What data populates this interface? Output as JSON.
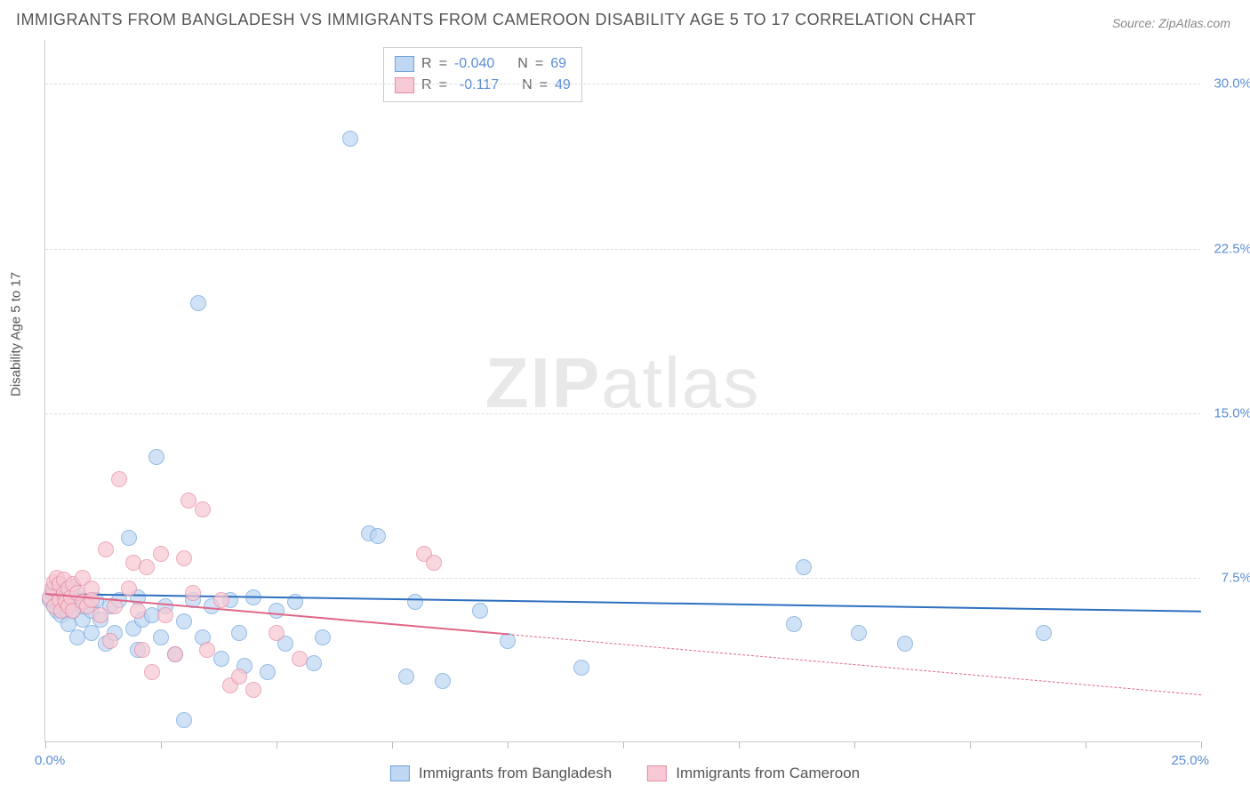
{
  "title": "IMMIGRANTS FROM BANGLADESH VS IMMIGRANTS FROM CAMEROON DISABILITY AGE 5 TO 17 CORRELATION CHART",
  "source": "Source: ZipAtlas.com",
  "ylabel": "Disability Age 5 to 17",
  "watermark_strong": "ZIP",
  "watermark_rest": "atlas",
  "chart": {
    "type": "scatter",
    "xlim": [
      0,
      25
    ],
    "ylim": [
      0,
      32
    ],
    "x_ticks": [
      0,
      2.5,
      5,
      7.5,
      10,
      12.5,
      15,
      17.5,
      20,
      22.5,
      25
    ],
    "x_origin_label": "0.0%",
    "x_max_label": "25.0%",
    "y_grid": [
      {
        "v": 7.5,
        "label": "7.5%"
      },
      {
        "v": 15.0,
        "label": "15.0%"
      },
      {
        "v": 22.5,
        "label": "22.5%"
      },
      {
        "v": 30.0,
        "label": "30.0%"
      }
    ],
    "background_color": "#ffffff",
    "grid_color": "#dddddd",
    "marker_radius": 9,
    "marker_opacity": 0.72,
    "title_fontsize": 18,
    "label_fontsize": 15,
    "series": [
      {
        "name": "Immigrants from Bangladesh",
        "legend_label": "Immigrants from Bangladesh",
        "fill": "#bfd7f2",
        "stroke": "#6fa3db",
        "trend_color": "#2e6fc0",
        "trend_width": 2.5,
        "R": "-0.040",
        "N": "69",
        "trend": {
          "x1": 0,
          "y1": 6.8,
          "x2": 25,
          "y2": 6.0
        },
        "points": [
          [
            0.1,
            6.5
          ],
          [
            0.15,
            6.8
          ],
          [
            0.2,
            6.2
          ],
          [
            0.2,
            7.0
          ],
          [
            0.25,
            6.0
          ],
          [
            0.3,
            6.6
          ],
          [
            0.3,
            7.2
          ],
          [
            0.35,
            5.8
          ],
          [
            0.4,
            6.5
          ],
          [
            0.4,
            7.0
          ],
          [
            0.45,
            6.0
          ],
          [
            0.5,
            6.8
          ],
          [
            0.5,
            5.4
          ],
          [
            0.55,
            6.4
          ],
          [
            0.6,
            6.0
          ],
          [
            0.6,
            7.1
          ],
          [
            0.7,
            4.8
          ],
          [
            0.7,
            6.6
          ],
          [
            0.8,
            5.6
          ],
          [
            0.8,
            6.2
          ],
          [
            1.0,
            5.0
          ],
          [
            1.0,
            6.0
          ],
          [
            1.1,
            6.5
          ],
          [
            1.2,
            5.6
          ],
          [
            1.3,
            4.5
          ],
          [
            1.4,
            6.2
          ],
          [
            1.5,
            5.0
          ],
          [
            1.6,
            6.5
          ],
          [
            1.8,
            9.3
          ],
          [
            1.9,
            5.2
          ],
          [
            2.0,
            4.2
          ],
          [
            2.0,
            6.6
          ],
          [
            2.1,
            5.6
          ],
          [
            2.3,
            5.8
          ],
          [
            2.4,
            13.0
          ],
          [
            2.5,
            4.8
          ],
          [
            2.6,
            6.2
          ],
          [
            2.8,
            4.0
          ],
          [
            3.0,
            5.5
          ],
          [
            3.0,
            1.0
          ],
          [
            3.2,
            6.5
          ],
          [
            3.3,
            20.0
          ],
          [
            3.4,
            4.8
          ],
          [
            3.6,
            6.2
          ],
          [
            3.8,
            3.8
          ],
          [
            4.0,
            6.5
          ],
          [
            4.2,
            5.0
          ],
          [
            4.3,
            3.5
          ],
          [
            4.5,
            6.6
          ],
          [
            4.8,
            3.2
          ],
          [
            5.0,
            6.0
          ],
          [
            5.2,
            4.5
          ],
          [
            5.4,
            6.4
          ],
          [
            5.8,
            3.6
          ],
          [
            6.0,
            4.8
          ],
          [
            6.6,
            27.5
          ],
          [
            7.0,
            9.5
          ],
          [
            7.2,
            9.4
          ],
          [
            7.8,
            3.0
          ],
          [
            8.0,
            6.4
          ],
          [
            8.6,
            2.8
          ],
          [
            9.4,
            6.0
          ],
          [
            10.0,
            4.6
          ],
          [
            11.6,
            3.4
          ],
          [
            16.4,
            8.0
          ],
          [
            16.2,
            5.4
          ],
          [
            17.6,
            5.0
          ],
          [
            18.6,
            4.5
          ],
          [
            21.6,
            5.0
          ]
        ]
      },
      {
        "name": "Immigrants from Cameroon",
        "legend_label": "Immigrants from Cameroon",
        "fill": "#f7c9d4",
        "stroke": "#e88aa2",
        "trend_color": "#e06688",
        "trend_width": 2,
        "dash_after_x": 10,
        "R": "-0.117",
        "N": "49",
        "trend": {
          "x1": 0,
          "y1": 6.8,
          "x2": 25,
          "y2": 2.2
        },
        "points": [
          [
            0.1,
            6.6
          ],
          [
            0.15,
            7.0
          ],
          [
            0.2,
            7.3
          ],
          [
            0.2,
            6.2
          ],
          [
            0.25,
            7.5
          ],
          [
            0.3,
            6.5
          ],
          [
            0.3,
            7.2
          ],
          [
            0.35,
            6.0
          ],
          [
            0.4,
            6.8
          ],
          [
            0.4,
            7.4
          ],
          [
            0.45,
            6.4
          ],
          [
            0.5,
            7.0
          ],
          [
            0.5,
            6.2
          ],
          [
            0.55,
            6.6
          ],
          [
            0.6,
            7.2
          ],
          [
            0.6,
            6.0
          ],
          [
            0.7,
            6.8
          ],
          [
            0.8,
            6.4
          ],
          [
            0.8,
            7.5
          ],
          [
            0.9,
            6.2
          ],
          [
            1.0,
            7.0
          ],
          [
            1.0,
            6.5
          ],
          [
            1.2,
            5.8
          ],
          [
            1.3,
            8.8
          ],
          [
            1.4,
            4.6
          ],
          [
            1.5,
            6.2
          ],
          [
            1.6,
            12.0
          ],
          [
            1.8,
            7.0
          ],
          [
            1.9,
            8.2
          ],
          [
            2.0,
            6.0
          ],
          [
            2.1,
            4.2
          ],
          [
            2.2,
            8.0
          ],
          [
            2.3,
            3.2
          ],
          [
            2.5,
            8.6
          ],
          [
            2.6,
            5.8
          ],
          [
            2.8,
            4.0
          ],
          [
            3.0,
            8.4
          ],
          [
            3.1,
            11.0
          ],
          [
            3.2,
            6.8
          ],
          [
            3.4,
            10.6
          ],
          [
            3.5,
            4.2
          ],
          [
            3.8,
            6.5
          ],
          [
            4.0,
            2.6
          ],
          [
            4.2,
            3.0
          ],
          [
            4.5,
            2.4
          ],
          [
            5.0,
            5.0
          ],
          [
            5.5,
            3.8
          ],
          [
            8.2,
            8.6
          ],
          [
            8.4,
            8.2
          ]
        ]
      }
    ]
  },
  "legend_top": {
    "R_label": "R",
    "N_label": "N",
    "eq": "="
  }
}
